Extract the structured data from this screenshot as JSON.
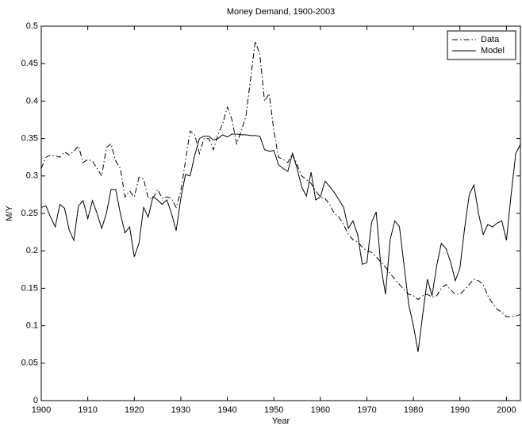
{
  "chart_data": {
    "type": "line",
    "title": "Money Demand, 1900-2003",
    "x_label": "Year",
    "y_label": "M/Y",
    "x": [
      1900,
      1901,
      1902,
      1903,
      1904,
      1905,
      1906,
      1907,
      1908,
      1909,
      1910,
      1911,
      1912,
      1913,
      1914,
      1915,
      1916,
      1917,
      1918,
      1919,
      1920,
      1921,
      1922,
      1923,
      1924,
      1925,
      1926,
      1927,
      1928,
      1929,
      1930,
      1931,
      1932,
      1933,
      1934,
      1935,
      1936,
      1937,
      1938,
      1939,
      1940,
      1941,
      1942,
      1943,
      1944,
      1945,
      1946,
      1947,
      1948,
      1949,
      1950,
      1951,
      1952,
      1953,
      1954,
      1955,
      1956,
      1957,
      1958,
      1959,
      1960,
      1961,
      1962,
      1963,
      1964,
      1965,
      1966,
      1967,
      1968,
      1969,
      1970,
      1971,
      1972,
      1973,
      1974,
      1975,
      1976,
      1977,
      1978,
      1979,
      1980,
      1981,
      1982,
      1983,
      1984,
      1985,
      1986,
      1987,
      1988,
      1989,
      1990,
      1991,
      1992,
      1993,
      1994,
      1995,
      1996,
      1997,
      1998,
      1999,
      2000,
      2001,
      2002,
      2003
    ],
    "series": [
      {
        "name": "Data",
        "color": "#000000",
        "line_style": "dashdot",
        "values": [
          0.31,
          0.325,
          0.328,
          0.327,
          0.325,
          0.332,
          0.328,
          0.333,
          0.34,
          0.318,
          0.322,
          0.32,
          0.31,
          0.3,
          0.338,
          0.343,
          0.32,
          0.31,
          0.272,
          0.28,
          0.272,
          0.298,
          0.296,
          0.27,
          0.27,
          0.282,
          0.27,
          0.272,
          0.27,
          0.258,
          0.28,
          0.32,
          0.36,
          0.355,
          0.33,
          0.35,
          0.35,
          0.335,
          0.355,
          0.37,
          0.392,
          0.375,
          0.343,
          0.36,
          0.38,
          0.43,
          0.48,
          0.462,
          0.4,
          0.41,
          0.36,
          0.325,
          0.322,
          0.318,
          0.33,
          0.315,
          0.3,
          0.295,
          0.29,
          0.28,
          0.272,
          0.27,
          0.262,
          0.25,
          0.245,
          0.235,
          0.222,
          0.215,
          0.212,
          0.205,
          0.2,
          0.198,
          0.192,
          0.185,
          0.178,
          0.17,
          0.162,
          0.155,
          0.148,
          0.142,
          0.14,
          0.135,
          0.14,
          0.142,
          0.138,
          0.14,
          0.15,
          0.155,
          0.148,
          0.142,
          0.142,
          0.148,
          0.155,
          0.162,
          0.16,
          0.155,
          0.14,
          0.13,
          0.122,
          0.118,
          0.112,
          0.112,
          0.113,
          0.115
        ]
      },
      {
        "name": "Model",
        "color": "#000000",
        "line_style": "solid",
        "values": [
          0.258,
          0.26,
          0.245,
          0.232,
          0.262,
          0.257,
          0.228,
          0.214,
          0.26,
          0.267,
          0.243,
          0.267,
          0.25,
          0.23,
          0.25,
          0.282,
          0.282,
          0.25,
          0.224,
          0.232,
          0.192,
          0.21,
          0.258,
          0.245,
          0.272,
          0.268,
          0.262,
          0.268,
          0.25,
          0.227,
          0.27,
          0.302,
          0.3,
          0.328,
          0.35,
          0.353,
          0.353,
          0.348,
          0.35,
          0.355,
          0.352,
          0.356,
          0.356,
          0.355,
          0.355,
          0.354,
          0.354,
          0.353,
          0.335,
          0.333,
          0.334,
          0.315,
          0.31,
          0.306,
          0.33,
          0.31,
          0.285,
          0.273,
          0.305,
          0.268,
          0.272,
          0.293,
          0.286,
          0.278,
          0.268,
          0.258,
          0.23,
          0.24,
          0.222,
          0.182,
          0.184,
          0.238,
          0.252,
          0.18,
          0.142,
          0.215,
          0.24,
          0.232,
          0.18,
          0.128,
          0.1,
          0.065,
          0.115,
          0.162,
          0.14,
          0.18,
          0.21,
          0.203,
          0.185,
          0.16,
          0.177,
          0.23,
          0.275,
          0.288,
          0.25,
          0.222,
          0.235,
          0.232,
          0.237,
          0.24,
          0.214,
          0.275,
          0.33,
          0.342
        ]
      }
    ],
    "xlim": [
      1900,
      2003
    ],
    "xticks": [
      1900,
      1910,
      1920,
      1930,
      1940,
      1950,
      1960,
      1970,
      1980,
      1990,
      2000
    ],
    "ylim": [
      0,
      0.5
    ],
    "yticks": [
      0,
      0.05,
      0.1,
      0.15,
      0.2,
      0.25,
      0.3,
      0.35,
      0.4,
      0.45,
      0.5
    ],
    "grid": false,
    "legend_position": "upper-right"
  }
}
